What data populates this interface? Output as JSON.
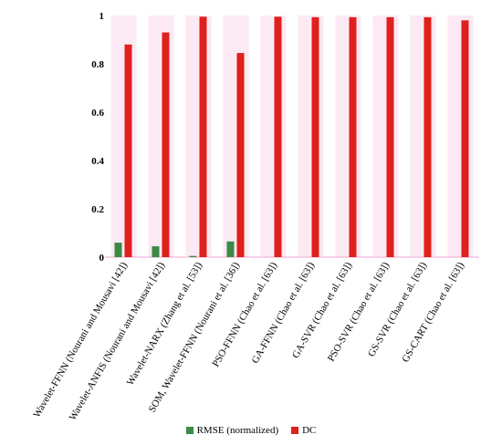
{
  "chart_data": {
    "type": "bar",
    "categories": [
      "Wavelet-FFNN (Nourani and Mousavi [42])",
      "Wavelet-ANFIS (Nourani and Mousavi [42])",
      "Wavelet-NARX (Zhang et al. [53])",
      "SOM, Wavelet-FFNN (Nourani et al. [36])",
      "PSO-FFNN (Chao et al. [63])",
      "GA-FFNN (Chao et al. [63])",
      "GA-SVR (Chao et al. [63])",
      "PSO-SVR (Chao et al. [63])",
      "GS-SVR (Chao et al. [63])",
      "GS-CART (Chao et al. [63])"
    ],
    "series": [
      {
        "name": "RMSE (normalized)",
        "color": "#3a8a45",
        "values": [
          0.06,
          0.045,
          0.005,
          0.065,
          0,
          0,
          0,
          0,
          0,
          0
        ]
      },
      {
        "name": "DC",
        "color": "#e0201b",
        "values": [
          0.88,
          0.93,
          0.995,
          0.845,
          0.995,
          0.993,
          0.993,
          0.993,
          0.993,
          0.98
        ]
      }
    ],
    "ylim": [
      0,
      1
    ],
    "yticks": [
      "0",
      "0.2",
      "0.4",
      "0.6",
      "0.8",
      "1"
    ],
    "title": "",
    "xlabel": "",
    "ylabel": "",
    "legend_position": "bottom"
  }
}
